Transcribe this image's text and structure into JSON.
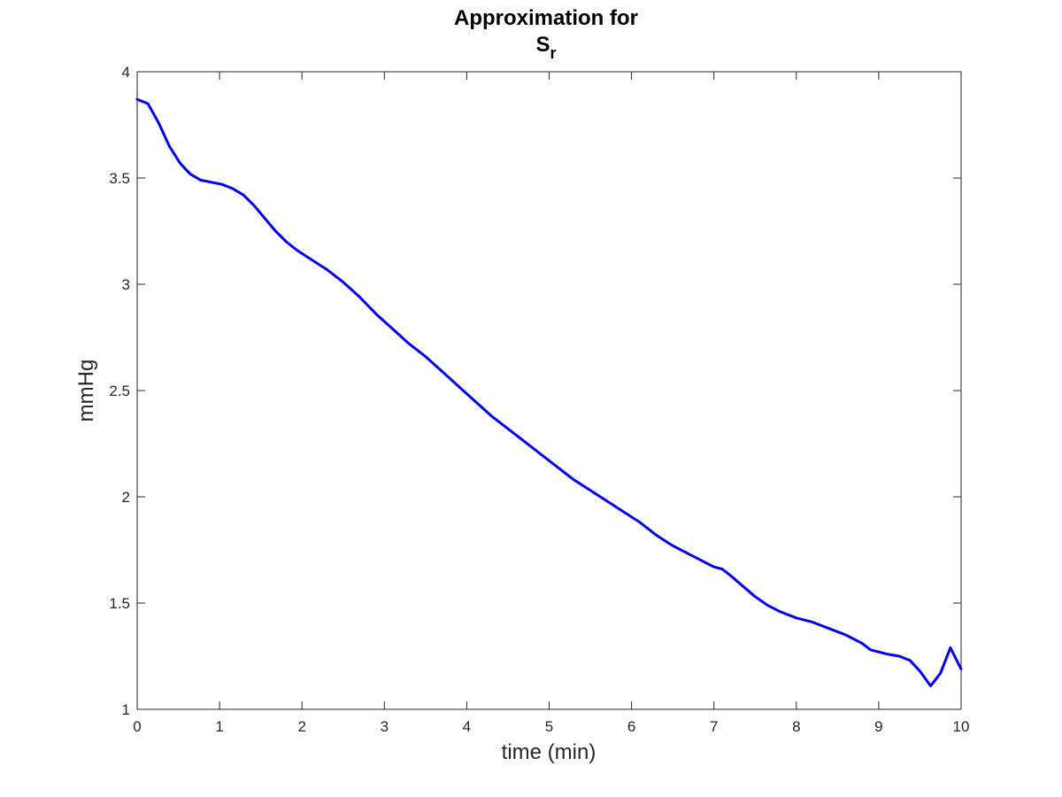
{
  "chart_data": {
    "type": "line",
    "title_line1": "Approximation for",
    "title_line2_base": "S",
    "title_line2_sub": "r",
    "xlabel": "time (min)",
    "ylabel": "mmHg",
    "xlim": [
      0,
      10
    ],
    "ylim": [
      1,
      4
    ],
    "xticks": [
      0,
      1,
      2,
      3,
      4,
      5,
      6,
      7,
      8,
      9,
      10
    ],
    "yticks": [
      1,
      1.5,
      2,
      2.5,
      3,
      3.5,
      4
    ],
    "grid": false,
    "colors": {
      "line": "#0000ee",
      "axes": "#262626",
      "background": "#ffffff"
    },
    "series": [
      {
        "x": [
          0,
          0.13,
          0.26,
          0.39,
          0.52,
          0.64,
          0.77,
          0.9,
          1.03,
          1.16,
          1.29,
          1.42,
          1.55,
          1.68,
          1.81,
          1.94,
          2.1,
          2.3,
          2.5,
          2.7,
          2.9,
          3.1,
          3.3,
          3.5,
          3.7,
          3.9,
          4.1,
          4.3,
          4.5,
          4.7,
          4.9,
          5.1,
          5.3,
          5.5,
          5.7,
          5.9,
          6.1,
          6.3,
          6.5,
          6.7,
          6.9,
          7.0,
          7.1,
          7.2,
          7.35,
          7.5,
          7.65,
          7.8,
          8.0,
          8.2,
          8.4,
          8.6,
          8.8,
          8.9,
          9.0,
          9.1,
          9.25,
          9.38,
          9.5,
          9.63,
          9.75,
          9.87,
          10.0
        ],
        "y": [
          3.87,
          3.85,
          3.76,
          3.65,
          3.57,
          3.52,
          3.49,
          3.48,
          3.47,
          3.45,
          3.42,
          3.37,
          3.31,
          3.25,
          3.2,
          3.16,
          3.12,
          3.07,
          3.01,
          2.94,
          2.86,
          2.79,
          2.72,
          2.66,
          2.59,
          2.52,
          2.45,
          2.38,
          2.32,
          2.26,
          2.2,
          2.14,
          2.08,
          2.03,
          1.98,
          1.93,
          1.88,
          1.82,
          1.77,
          1.73,
          1.69,
          1.67,
          1.66,
          1.63,
          1.58,
          1.53,
          1.49,
          1.46,
          1.43,
          1.41,
          1.38,
          1.35,
          1.31,
          1.28,
          1.27,
          1.26,
          1.25,
          1.23,
          1.18,
          1.11,
          1.17,
          1.29,
          1.19
        ]
      }
    ]
  }
}
